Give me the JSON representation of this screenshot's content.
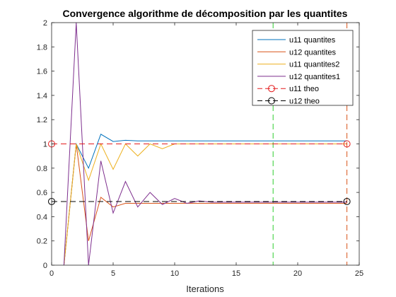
{
  "chart_data": {
    "type": "line",
    "title": "Convergence algorithme de décomposition par les quantites",
    "xlabel": "Iterations",
    "ylabel": "",
    "xlim": [
      0,
      25
    ],
    "ylim": [
      0,
      2
    ],
    "xticks": [
      0,
      5,
      10,
      15,
      20,
      25
    ],
    "yticks": [
      0,
      0.2,
      0.4,
      0.6,
      0.8,
      1,
      1.2,
      1.4,
      1.6,
      1.8,
      2
    ],
    "xtick_labels": [
      "0",
      "5",
      "10",
      "15",
      "20",
      "25"
    ],
    "ytick_labels": [
      "0",
      "0.2",
      "0.4",
      "0.6",
      "0.8",
      "1",
      "1.2",
      "1.4",
      "1.6",
      "1.8",
      "2"
    ],
    "grid": false,
    "legend_position": "top-right",
    "series": [
      {
        "name": "u11 quantites",
        "color": "#0072BD",
        "style": "solid",
        "x": [
          1,
          2,
          3,
          4,
          5,
          6,
          7,
          8,
          9,
          10,
          11,
          12,
          13,
          14,
          15,
          16,
          17,
          18,
          19,
          20,
          21,
          22,
          23,
          24
        ],
        "y": [
          0,
          1.0,
          0.8,
          1.08,
          1.02,
          1.03,
          1.025,
          1.025,
          1.025,
          1.025,
          1.025,
          1.025,
          1.025,
          1.025,
          1.025,
          1.025,
          1.025,
          1.025,
          1.025,
          1.025,
          1.025,
          1.025,
          1.025,
          1.025
        ]
      },
      {
        "name": "u12 quantites",
        "color": "#D95319",
        "style": "solid",
        "x": [
          1,
          2,
          3,
          4,
          5,
          6,
          7,
          8,
          9,
          10,
          11,
          12,
          13,
          14,
          15,
          16,
          17,
          18,
          19,
          20,
          21,
          22,
          23,
          24
        ],
        "y": [
          0,
          1.0,
          0.2,
          0.56,
          0.48,
          0.51,
          0.51,
          0.51,
          0.51,
          0.51,
          0.51,
          0.51,
          0.51,
          0.51,
          0.51,
          0.51,
          0.51,
          0.51,
          0.51,
          0.51,
          0.51,
          0.51,
          0.51,
          0.51
        ]
      },
      {
        "name": "u11 quantites2",
        "color": "#EDB120",
        "style": "solid",
        "x": [
          1,
          2,
          3,
          4,
          5,
          6,
          7,
          8,
          9,
          10,
          11,
          12,
          13,
          14,
          15,
          16,
          17,
          18,
          19,
          20,
          21,
          22,
          23,
          24
        ],
        "y": [
          0,
          1.0,
          0.7,
          1.0,
          0.79,
          1.0,
          0.9,
          1.0,
          0.96,
          1.0,
          1.0,
          1.0,
          1.0,
          1.0,
          1.0,
          1.0,
          1.0,
          1.0,
          1.0,
          1.0,
          1.0,
          1.0,
          1.0,
          1.0
        ]
      },
      {
        "name": "u12 quantites1",
        "color": "#7E2F8E",
        "style": "solid",
        "x": [
          1,
          2,
          3,
          4,
          5,
          6,
          7,
          8,
          9,
          10,
          11,
          12,
          13,
          14,
          15,
          16,
          17,
          18,
          19,
          20,
          21,
          22,
          23,
          24
        ],
        "y": [
          0,
          2.0,
          0,
          0.86,
          0.43,
          0.69,
          0.48,
          0.6,
          0.5,
          0.55,
          0.51,
          0.53,
          0.52,
          0.52,
          0.52,
          0.52,
          0.52,
          0.52,
          0.52,
          0.52,
          0.52,
          0.52,
          0.52,
          0.52
        ]
      },
      {
        "name": "u11 theo",
        "color": "#E41A1C",
        "style": "dashed",
        "marker": "circle",
        "x": [
          0,
          24
        ],
        "y": [
          1.0,
          1.0
        ]
      },
      {
        "name": "u12 theo",
        "color": "#000000",
        "style": "dashed",
        "marker": "circle",
        "x": [
          0,
          24
        ],
        "y": [
          0.525,
          0.525
        ]
      }
    ],
    "vertical_lines": [
      {
        "x": 18,
        "color": "#2ECC2E",
        "style": "dashed"
      },
      {
        "x": 24,
        "color": "#D95319",
        "style": "dashed"
      }
    ]
  }
}
